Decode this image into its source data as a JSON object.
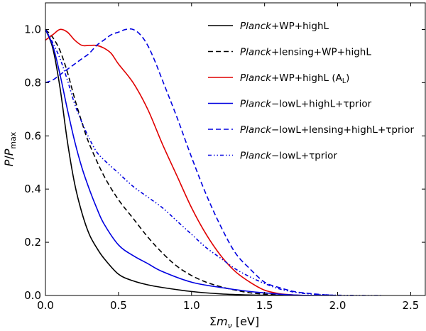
{
  "chart_data": {
    "type": "line",
    "xlabel": "Σm_ν [eV]",
    "xlabel_parts": {
      "sigma": "Σ",
      "m": "m",
      "sub": "ν",
      "unit": " [eV]"
    },
    "ylabel": "P/P_max",
    "ylabel_parts": {
      "p": "P",
      "slash": "/",
      "P": "P",
      "sub": "max"
    },
    "xlim": [
      0.0,
      2.6
    ],
    "ylim": [
      0.0,
      1.1
    ],
    "xticks": [
      0.0,
      0.5,
      1.0,
      1.5,
      2.0,
      2.5
    ],
    "xtick_labels": [
      "0.0",
      "0.5",
      "1.0",
      "1.5",
      "2.0",
      "2.5"
    ],
    "yticks": [
      0.0,
      0.2,
      0.4,
      0.6,
      0.8,
      1.0
    ],
    "ytick_labels": [
      "0.0",
      "0.2",
      "0.4",
      "0.6",
      "0.8",
      "1.0"
    ],
    "grid": false,
    "legend_position": "top-right",
    "series": [
      {
        "name": "Planck+WP+highL",
        "label_italic": "Planck",
        "label_rest": "+WP+highL",
        "color": "#000000",
        "style": "solid",
        "x": [
          0,
          0.05,
          0.1,
          0.15,
          0.2,
          0.25,
          0.3,
          0.35,
          0.4,
          0.5,
          0.6,
          0.7,
          0.8,
          1.0,
          1.2,
          1.4,
          1.6,
          1.7
        ],
        "y": [
          1.0,
          0.93,
          0.78,
          0.58,
          0.42,
          0.31,
          0.23,
          0.18,
          0.14,
          0.08,
          0.055,
          0.04,
          0.03,
          0.015,
          0.006,
          0.002,
          0.0005,
          0.0
        ]
      },
      {
        "name": "Planck+lensing+WP+highL",
        "label_italic": "Planck",
        "label_rest": "+lensing+WP+highL",
        "color": "#000000",
        "style": "dashed",
        "x": [
          0,
          0.05,
          0.1,
          0.15,
          0.2,
          0.25,
          0.3,
          0.4,
          0.5,
          0.6,
          0.7,
          0.8,
          0.9,
          1.0,
          1.1,
          1.2,
          1.3,
          1.4,
          1.5,
          1.6,
          1.7,
          1.8
        ],
        "y": [
          1.0,
          0.97,
          0.92,
          0.84,
          0.74,
          0.65,
          0.57,
          0.45,
          0.36,
          0.29,
          0.22,
          0.16,
          0.11,
          0.075,
          0.05,
          0.033,
          0.02,
          0.01,
          0.005,
          0.002,
          0.0005,
          0.0
        ]
      },
      {
        "name": "Planck+WP+highL (A_L)",
        "label_italic": "Planck",
        "label_rest": "+WP+highL (A",
        "label_sub": "L",
        "label_tail": ")",
        "color": "#e00000",
        "style": "solid",
        "x": [
          0,
          0.05,
          0.1,
          0.15,
          0.2,
          0.25,
          0.3,
          0.35,
          0.4,
          0.45,
          0.5,
          0.6,
          0.7,
          0.8,
          0.9,
          1.0,
          1.1,
          1.2,
          1.3,
          1.4,
          1.5,
          1.6,
          1.7,
          1.8
        ],
        "y": [
          0.96,
          0.98,
          1.0,
          0.99,
          0.96,
          0.94,
          0.94,
          0.94,
          0.93,
          0.91,
          0.87,
          0.8,
          0.7,
          0.57,
          0.45,
          0.33,
          0.23,
          0.15,
          0.09,
          0.05,
          0.02,
          0.007,
          0.002,
          0.0
        ]
      },
      {
        "name": "Planck-lowL+highL+τprior",
        "label_italic": "Planck",
        "label_rest": "−lowL+highL+τprior",
        "color": "#0000e0",
        "style": "solid",
        "x": [
          0,
          0.05,
          0.1,
          0.15,
          0.2,
          0.25,
          0.3,
          0.35,
          0.4,
          0.5,
          0.6,
          0.7,
          0.8,
          1.0,
          1.2,
          1.4,
          1.5,
          1.6,
          1.7,
          1.8,
          1.9
        ],
        "y": [
          1.0,
          0.94,
          0.83,
          0.7,
          0.58,
          0.48,
          0.4,
          0.33,
          0.27,
          0.19,
          0.15,
          0.12,
          0.09,
          0.05,
          0.03,
          0.015,
          0.01,
          0.005,
          0.002,
          0.0005,
          0.0
        ]
      },
      {
        "name": "Planck-lowL+lensing+highL+τprior",
        "label_italic": "Planck",
        "label_rest": "−lowL+lensing+highL+τprior",
        "color": "#0000e0",
        "style": "dashed",
        "x": [
          0,
          0.05,
          0.1,
          0.15,
          0.2,
          0.25,
          0.3,
          0.35,
          0.4,
          0.45,
          0.5,
          0.55,
          0.6,
          0.65,
          0.7,
          0.75,
          0.8,
          0.9,
          1.0,
          1.1,
          1.2,
          1.3,
          1.4,
          1.5,
          1.6,
          1.7,
          1.8,
          1.9,
          2.0
        ],
        "y": [
          0.8,
          0.81,
          0.83,
          0.85,
          0.87,
          0.89,
          0.91,
          0.94,
          0.96,
          0.98,
          0.99,
          1.0,
          1.0,
          0.98,
          0.94,
          0.88,
          0.81,
          0.67,
          0.52,
          0.38,
          0.26,
          0.16,
          0.1,
          0.05,
          0.03,
          0.015,
          0.008,
          0.003,
          0.0
        ]
      },
      {
        "name": "Planck-lowL+τprior",
        "label_italic": "Planck",
        "label_rest": "−lowL+τprior",
        "color": "#0000e0",
        "style": "dashdotdot",
        "x": [
          0,
          0.05,
          0.1,
          0.15,
          0.2,
          0.25,
          0.3,
          0.35,
          0.4,
          0.5,
          0.6,
          0.7,
          0.8,
          0.9,
          1.0,
          1.1,
          1.2,
          1.3,
          1.4,
          1.5,
          1.6,
          1.7,
          1.8,
          1.9,
          2.0,
          2.1,
          2.2,
          2.3
        ],
        "y": [
          1.0,
          0.95,
          0.89,
          0.81,
          0.72,
          0.65,
          0.59,
          0.54,
          0.51,
          0.46,
          0.41,
          0.37,
          0.33,
          0.28,
          0.23,
          0.18,
          0.14,
          0.1,
          0.07,
          0.045,
          0.025,
          0.013,
          0.006,
          0.003,
          0.001,
          0.0005,
          0.0,
          0.0
        ]
      }
    ]
  }
}
